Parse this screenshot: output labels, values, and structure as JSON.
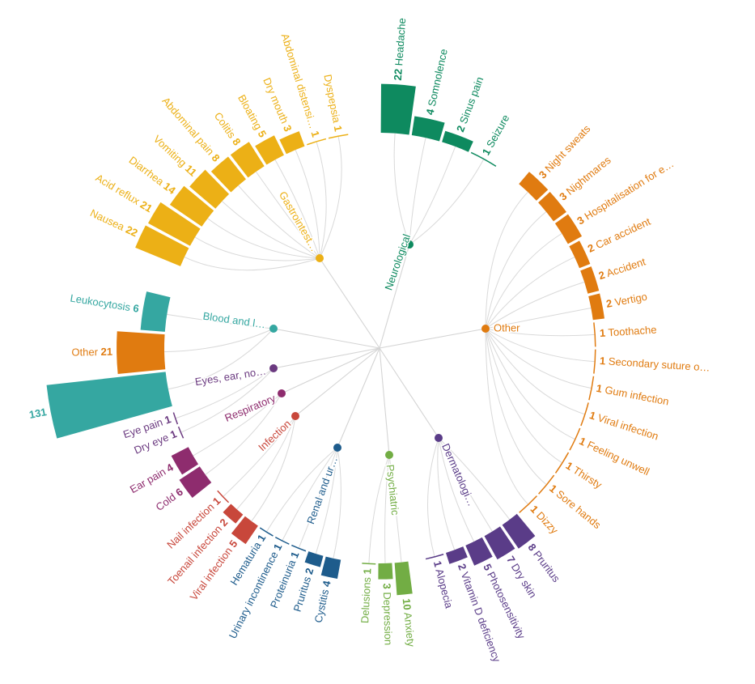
{
  "chart_data": {
    "type": "radial-dendrogram-bar",
    "title": "",
    "groups": [
      {
        "name": "Neurological",
        "color": "#0e8a5f",
        "items": [
          {
            "label": "Headache",
            "value": 22
          },
          {
            "label": "Somnolence",
            "value": 4
          },
          {
            "label": "Sinus pain",
            "value": 2
          },
          {
            "label": "Seizure",
            "value": 1
          }
        ]
      },
      {
        "name": "Other",
        "color": "#e07b10",
        "items": [
          {
            "label": "Night sweats",
            "value": 3
          },
          {
            "label": "Nightmares",
            "value": 3
          },
          {
            "label": "Hospitalisation for e…",
            "value": 3
          },
          {
            "label": "Car accident",
            "value": 2
          },
          {
            "label": "Accident",
            "value": 2
          },
          {
            "label": "Vertigo",
            "value": 2
          },
          {
            "label": "Toothache",
            "value": 1
          },
          {
            "label": "Secondary suture o…",
            "value": 1
          },
          {
            "label": "Gum infection",
            "value": 1
          },
          {
            "label": "Viral infection",
            "value": 1
          },
          {
            "label": "Feeling unwell",
            "value": 1
          },
          {
            "label": "Thirsty",
            "value": 1
          },
          {
            "label": "Sore hands",
            "value": 1
          },
          {
            "label": "Dizzy",
            "value": 1
          }
        ]
      },
      {
        "name": "Dermatologi…",
        "color": "#5a3c88",
        "items": [
          {
            "label": "Pruritus",
            "value": 8
          },
          {
            "label": "Dry skin",
            "value": 7
          },
          {
            "label": "Photosensitivity",
            "value": 5
          },
          {
            "label": "Vitamin D deficiency",
            "value": 2
          },
          {
            "label": "Alopecia",
            "value": 1
          }
        ]
      },
      {
        "name": "Psychiatric",
        "color": "#72ad44",
        "items": [
          {
            "label": "Anxiety",
            "value": 10
          },
          {
            "label": "Depression",
            "value": 3
          },
          {
            "label": "Delusions",
            "value": 1
          }
        ]
      },
      {
        "name": "Renal and ur…",
        "color": "#1e5c8c",
        "items": [
          {
            "label": "Cystitis",
            "value": 4
          },
          {
            "label": "Pruritus",
            "value": 2
          },
          {
            "label": "Proteinuria",
            "value": 1
          },
          {
            "label": "Urinary incontinence",
            "value": 1
          },
          {
            "label": "Hematuria",
            "value": 1
          }
        ]
      },
      {
        "name": "Infection",
        "color": "#c8473b",
        "items": [
          {
            "label": "Viral infection",
            "value": 5
          },
          {
            "label": "Toenail infection",
            "value": 2
          },
          {
            "label": "Nail infection",
            "value": 1
          }
        ]
      },
      {
        "name": "Respiratory",
        "color": "#8e2c6e",
        "items": [
          {
            "label": "Cold",
            "value": 6
          },
          {
            "label": "Ear pain",
            "value": 4
          }
        ]
      },
      {
        "name": "Eyes, ear, no…",
        "color": "#6b3a80",
        "items": [
          {
            "label": "Dry eye",
            "value": 1
          },
          {
            "label": "Eye pain",
            "value": 1
          }
        ]
      },
      {
        "name": "Blood and l…",
        "color": "#35a7a1",
        "items": [
          {
            "label": "",
            "value": 131
          },
          {
            "label": "Other",
            "value": 21,
            "color": "#e07b10"
          },
          {
            "label": "Leukocytosis",
            "value": 6
          }
        ]
      },
      {
        "name": "Gastrointest…",
        "color": "#ecb016",
        "items": [
          {
            "label": "Nausea",
            "value": 22
          },
          {
            "label": "Acid reflux",
            "value": 21
          },
          {
            "label": "Diarrhea",
            "value": 14
          },
          {
            "label": "Vomiting",
            "value": 11
          },
          {
            "label": "Abdominal pain",
            "value": 8
          },
          {
            "label": "Colitis",
            "value": 8
          },
          {
            "label": "Bloating",
            "value": 5
          },
          {
            "label": "Dry mouth",
            "value": 3
          },
          {
            "label": "Abdominal distensi…",
            "value": 1
          },
          {
            "label": "Dyspepsia",
            "value": 1
          }
        ]
      }
    ]
  }
}
